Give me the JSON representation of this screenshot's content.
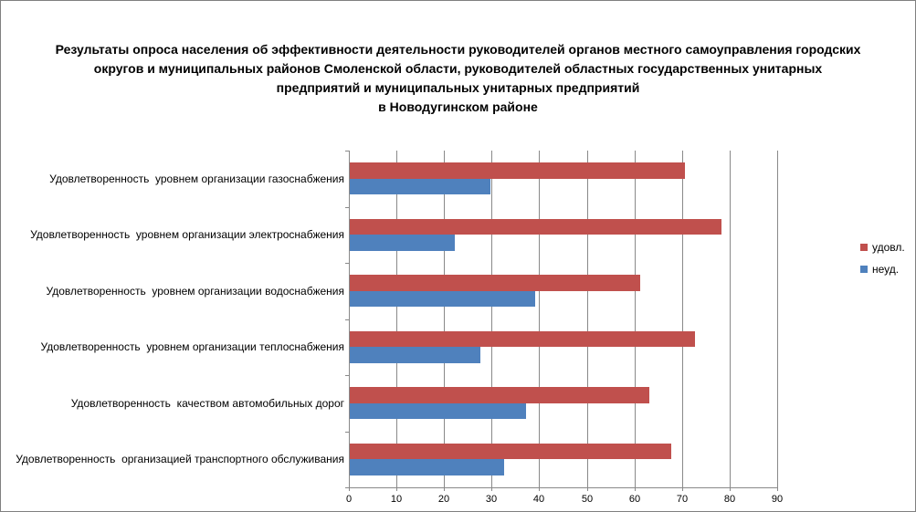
{
  "title": {
    "lines": [
      "Результаты опроса населения об эффективности деятельности руководителей органов местного самоуправления городских",
      "округов и муниципальных районов Смоленской области, руководителей областных государственных унитарных",
      "предприятий и муниципальных унитарных предприятий",
      "в Новодугинском районе"
    ]
  },
  "colors": {
    "satisfied": "#C0504D",
    "unsatisfied": "#4F81BD",
    "grid": "#898989",
    "frame_border": "#808080"
  },
  "chart_data": {
    "type": "bar",
    "orientation": "horizontal",
    "title": "Результаты опроса населения об эффективности деятельности руководителей органов местного самоуправления городских округов и муниципальных районов Смоленской области, руководителей областных государственных унитарных предприятий и муниципальных унитарных предприятий в Новодугинском районе",
    "categories": [
      "Удовлетворенность  уровнем организации газоснабжения",
      "Удовлетворенность  уровнем организации электроснабжения",
      "Удовлетворенность  уровнем организации водоснабжения",
      "Удовлетворенность  уровнем организации теплоснабжения",
      "Удовлетворенность  качеством автомобильных дорог",
      "Удовлетворенность  организацией транспортного обслуживания"
    ],
    "series": [
      {
        "name": "удовл.",
        "color": "#C0504D",
        "values": [
          70.5,
          78,
          61,
          72.5,
          63,
          67.5
        ]
      },
      {
        "name": "неуд.",
        "color": "#4F81BD",
        "values": [
          29.5,
          22,
          39,
          27.5,
          37,
          32.5
        ]
      }
    ],
    "x_axis": {
      "min": 0,
      "max": 90,
      "tick_interval": 10,
      "tick_labels": [
        "0",
        "10",
        "20",
        "30",
        "40",
        "50",
        "60",
        "70",
        "80",
        "90"
      ]
    },
    "grid": "vertical",
    "legend_position": "right"
  }
}
